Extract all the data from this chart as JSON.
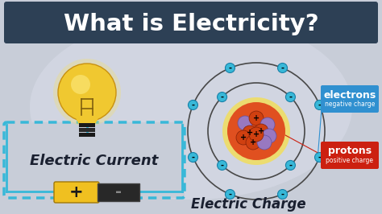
{
  "bg_color": "#b8bec8",
  "title_bg_color": "#2d4055",
  "title_text": "What is Electricity?",
  "title_color": "#ffffff",
  "panel_border_color": "#38b8d8",
  "electric_current_text": "Electric Current",
  "electric_charge_text": "Electric Charge",
  "electrons_label": "electrons",
  "electrons_sublabel": "negative charge",
  "protons_label": "protons",
  "protons_sublabel": "positive charge",
  "electron_color": "#38b8d8",
  "nucleus_glow_color": "#f0d040",
  "nucleus_orange_color": "#e05020",
  "nucleus_purple_color": "#9878c0",
  "proton_color": "#d04010",
  "battery_pos_color": "#f0c020",
  "battery_neg_color": "#282828",
  "bulb_color": "#f0c830",
  "bulb_shade_color": "#d4a010",
  "orbit_color": "#484848",
  "electrons_box_color": "#3090d0",
  "protons_box_color": "#cc2010",
  "text_dark": "#1a2030"
}
